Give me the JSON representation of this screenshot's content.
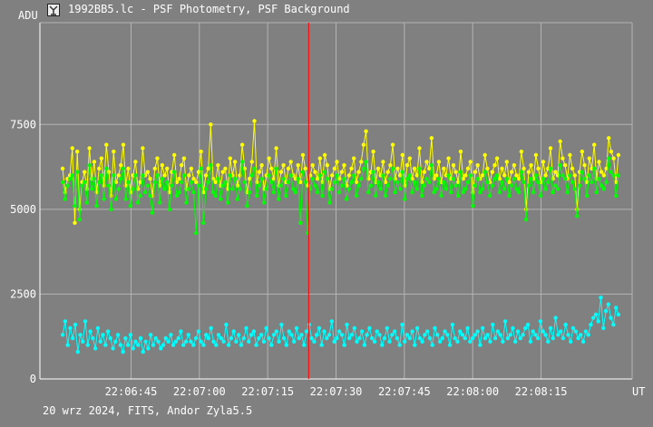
{
  "window": {
    "title": "1992BB5.lc - PSF Photometry, PSF Background",
    "footer": "20 wrz 2024, FITS, Andor Zyla5.5",
    "icon": "telescope-app-icon"
  },
  "colors": {
    "background": "#808080",
    "grid": "#b4b4b4",
    "axis": "#ffffff",
    "cursor": "#ff0000",
    "series_yellow": "#ffff00",
    "series_green": "#00ff00",
    "series_cyan": "#00ffff"
  },
  "chart_data": {
    "type": "line",
    "title": "1992BB5.lc - PSF Photometry, PSF Background",
    "ylabel": "ADU",
    "xlabel": "UT",
    "ylim": [
      0,
      10500
    ],
    "yticks": [
      0,
      2500,
      5000,
      7500
    ],
    "xlim": [
      "22:06:25",
      "22:08:35"
    ],
    "xticks": [
      "22:06:45",
      "22:07:00",
      "22:07:15",
      "22:07:30",
      "22:07:45",
      "22:08:00",
      "22:08:15"
    ],
    "grid": true,
    "cursor_x": "22:07:24",
    "x_range_seconds": [
      0,
      120
    ],
    "series": [
      {
        "color": "#ffff00",
        "values": [
          6200,
          5500,
          5900,
          6000,
          6800,
          4600,
          6700,
          5000,
          5800,
          6100,
          5600,
          6800,
          5900,
          6400,
          5500,
          6200,
          6500,
          5700,
          6900,
          6100,
          5400,
          6700,
          5800,
          6000,
          6300,
          6900,
          5700,
          6200,
          5500,
          6000,
          6400,
          5600,
          5800,
          6800,
          6000,
          6100,
          5900,
          5400,
          6200,
          6500,
          5700,
          6300,
          6000,
          6200,
          5500,
          6100,
          6600,
          5800,
          5900,
          6300,
          6500,
          5600,
          6000,
          6200,
          5900,
          5800,
          6100,
          6700,
          5500,
          6000,
          6200,
          7500,
          5900,
          5800,
          6300,
          5700,
          6100,
          6200,
          5600,
          6500,
          6000,
          6400,
          5700,
          6000,
          6900,
          6200,
          5500,
          5900,
          6400,
          7600,
          5800,
          6100,
          6300,
          5600,
          6000,
          6500,
          6200,
          5900,
          6800,
          5700,
          6100,
          6300,
          5800,
          6200,
          6400,
          6000,
          5900,
          6300,
          5800,
          6600,
          6200,
          5700,
          6000,
          6300,
          6100,
          5900,
          6500,
          5800,
          6600,
          6300,
          5600,
          6000,
          6200,
          6400,
          5900,
          6100,
          6300,
          5700,
          6000,
          6200,
          6500,
          5800,
          6100,
          6400,
          6900,
          7300,
          5900,
          6100,
          6700,
          5800,
          6200,
          6000,
          6400,
          5800,
          6100,
          6300,
          6900,
          5900,
          6200,
          6000,
          6600,
          5700,
          6300,
          6500,
          5900,
          6200,
          6000,
          6800,
          5800,
          6100,
          6400,
          6200,
          7100,
          5900,
          6000,
          6400,
          5800,
          6200,
          6000,
          6500,
          5900,
          6300,
          6100,
          5800,
          6700,
          5900,
          6000,
          6200,
          6400,
          5500,
          6100,
          6300,
          5900,
          6000,
          6600,
          6200,
          5800,
          6100,
          6300,
          6500,
          5900,
          6200,
          6000,
          6400,
          5800,
          6100,
          6300,
          6000,
          5900,
          6700,
          6200,
          5000,
          6100,
          6300,
          5900,
          6600,
          6200,
          5800,
          6400,
          6000,
          6200,
          6800,
          5900,
          6100,
          6000,
          7000,
          6500,
          6300,
          5900,
          6600,
          6200,
          6000,
          5000,
          6100,
          6700,
          6300,
          5800,
          6500,
          6200,
          6900,
          5900,
          6400,
          6100,
          6000,
          6200,
          7100,
          6700,
          6500,
          5800,
          6600
        ]
      },
      {
        "color": "#00ff00",
        "values": [
          5800,
          5300,
          5700,
          5900,
          6000,
          5100,
          6100,
          4700,
          5700,
          5800,
          5200,
          6300,
          5600,
          5900,
          5100,
          5800,
          6000,
          5300,
          6200,
          5700,
          5000,
          6000,
          5300,
          5600,
          5900,
          6200,
          5300,
          5800,
          5100,
          5600,
          6000,
          5200,
          5400,
          6000,
          5500,
          5700,
          5400,
          4900,
          5800,
          6000,
          5200,
          5900,
          5600,
          5800,
          5000,
          5700,
          6100,
          5400,
          5500,
          5800,
          6000,
          5200,
          5600,
          5800,
          5500,
          4300,
          5700,
          6200,
          4600,
          5600,
          5800,
          6300,
          5500,
          5400,
          5900,
          5300,
          5700,
          5800,
          5200,
          6000,
          5600,
          5900,
          5300,
          5600,
          6400,
          5800,
          5100,
          5500,
          6000,
          6200,
          5400,
          5700,
          5900,
          5200,
          5600,
          6000,
          5800,
          5500,
          6200,
          5300,
          5700,
          5900,
          5400,
          5800,
          6000,
          5600,
          5500,
          5900,
          4600,
          6100,
          5800,
          4300,
          5600,
          5900,
          5700,
          5500,
          6000,
          5400,
          6100,
          5900,
          5200,
          5600,
          5800,
          6000,
          5500,
          5700,
          5900,
          5300,
          5600,
          5800,
          6000,
          5400,
          5700,
          5900,
          6200,
          6400,
          5500,
          5700,
          6100,
          5400,
          5800,
          5600,
          6000,
          5400,
          5700,
          5900,
          6200,
          5500,
          5800,
          5600,
          6100,
          5300,
          5900,
          6000,
          5500,
          5800,
          5600,
          6200,
          5400,
          5700,
          5900,
          5800,
          6300,
          5500,
          5600,
          5900,
          5400,
          5800,
          5600,
          6000,
          5500,
          5900,
          5700,
          5400,
          6100,
          5500,
          5600,
          5800,
          6000,
          5100,
          5700,
          5900,
          5500,
          5600,
          6100,
          5800,
          5400,
          5700,
          5900,
          6000,
          5500,
          5800,
          5600,
          5900,
          5400,
          5700,
          5900,
          5600,
          5500,
          6100,
          5800,
          4700,
          5700,
          5900,
          5500,
          6000,
          5800,
          5400,
          5900,
          5600,
          5800,
          6200,
          5500,
          5700,
          5600,
          6300,
          6000,
          5900,
          5500,
          6000,
          5800,
          5600,
          4800,
          5700,
          6100,
          5900,
          5400,
          6000,
          5800,
          6200,
          5500,
          5900,
          5700,
          5600,
          5800,
          6500,
          6100,
          6000,
          5400,
          6000
        ]
      },
      {
        "color": "#00ffff",
        "values": [
          1300,
          1700,
          1000,
          1500,
          1200,
          1600,
          800,
          1300,
          1100,
          1700,
          1000,
          1400,
          1200,
          900,
          1500,
          1100,
          1300,
          1000,
          1400,
          1200,
          900,
          1100,
          1300,
          1000,
          800,
          1200,
          1000,
          1300,
          900,
          1100,
          1000,
          1200,
          800,
          1100,
          900,
          1300,
          1000,
          1200,
          1100,
          900,
          1000,
          1200,
          1100,
          1300,
          1000,
          1100,
          1200,
          1400,
          1000,
          1100,
          1300,
          1100,
          1000,
          1200,
          1400,
          1100,
          1000,
          1300,
          1200,
          1500,
          1100,
          1000,
          1300,
          1200,
          1100,
          1600,
          1000,
          1200,
          1400,
          1100,
          1300,
          1000,
          1200,
          1500,
          1100,
          1300,
          1400,
          1000,
          1200,
          1300,
          1100,
          1500,
          1200,
          1000,
          1300,
          1400,
          1100,
          1600,
          1200,
          1000,
          1400,
          1300,
          1100,
          1500,
          1200,
          1300,
          1000,
          1400,
          1600,
          1200,
          1100,
          1300,
          1500,
          1000,
          1400,
          1200,
          1300,
          1700,
          1100,
          1200,
          1400,
          1300,
          1000,
          1600,
          1200,
          1300,
          1500,
          1100,
          1200,
          1400,
          1000,
          1300,
          1500,
          1200,
          1100,
          1400,
          1300,
          1000,
          1200,
          1500,
          1100,
          1300,
          1400,
          1200,
          1000,
          1600,
          1100,
          1300,
          1200,
          1400,
          1000,
          1500,
          1200,
          1100,
          1300,
          1400,
          1200,
          1000,
          1500,
          1300,
          1100,
          1200,
          1400,
          1300,
          1000,
          1600,
          1200,
          1100,
          1400,
          1300,
          1200,
          1500,
          1100,
          1200,
          1300,
          1400,
          1000,
          1500,
          1200,
          1300,
          1100,
          1600,
          1200,
          1400,
          1300,
          1100,
          1700,
          1200,
          1300,
          1500,
          1100,
          1400,
          1200,
          1300,
          1500,
          1600,
          1100,
          1400,
          1300,
          1200,
          1700,
          1400,
          1300,
          1100,
          1500,
          1200,
          1800,
          1300,
          1400,
          1200,
          1600,
          1300,
          1100,
          1500,
          1400,
          1200,
          1300,
          1100,
          1400,
          1300,
          1600,
          1800,
          1900,
          1700,
          2400,
          1500,
          2000,
          2200,
          1800,
          1600,
          2100,
          1900
        ]
      }
    ]
  }
}
